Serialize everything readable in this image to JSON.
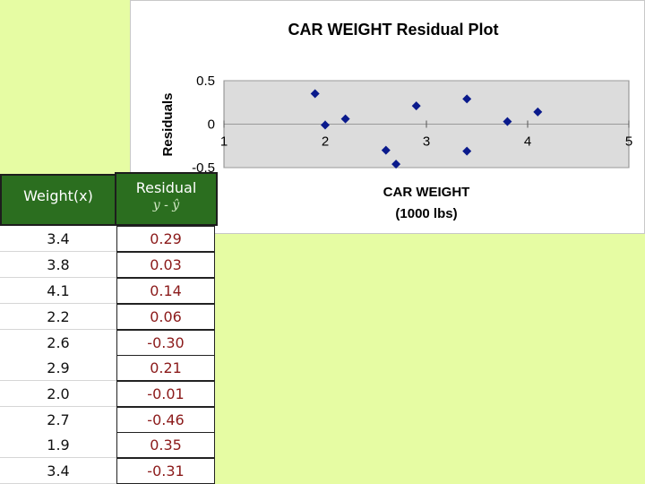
{
  "table": {
    "header_weight": "Weight(x)",
    "header_residual": "Residual",
    "header_residual_sub": "y - ŷ",
    "rows": [
      {
        "weight": "3.4",
        "residual": "0.29"
      },
      {
        "weight": "3.8",
        "residual": "0.03"
      },
      {
        "weight": "4.1",
        "residual": "0.14"
      },
      {
        "weight": "2.2",
        "residual": "0.06"
      },
      {
        "weight": "2.6",
        "residual": "-0.30"
      },
      {
        "weight": "2.9",
        "residual": "0.21"
      },
      {
        "weight": "2.0",
        "residual": "-0.01"
      },
      {
        "weight": "2.7",
        "residual": "-0.46"
      },
      {
        "weight": "1.9",
        "residual": "0.35"
      },
      {
        "weight": "3.4",
        "residual": "-0.31"
      }
    ]
  },
  "chart_data": {
    "type": "scatter",
    "title": "CAR WEIGHT  Residual Plot",
    "xlabel_line1": "CAR WEIGHT",
    "xlabel_line2": "(1000 lbs)",
    "ylabel": "Residuals",
    "xlim": [
      1,
      5
    ],
    "ylim": [
      -0.5,
      0.5
    ],
    "xticks": [
      "1",
      "2",
      "3",
      "4",
      "5"
    ],
    "yticks": [
      "0.5",
      "0",
      "-0.5"
    ],
    "grid": true,
    "plot_background": "#dcdcdc",
    "marker_color": "#0a1a8c",
    "points": [
      {
        "x": 3.4,
        "y": 0.29
      },
      {
        "x": 3.8,
        "y": 0.03
      },
      {
        "x": 4.1,
        "y": 0.14
      },
      {
        "x": 2.2,
        "y": 0.06
      },
      {
        "x": 2.6,
        "y": -0.3
      },
      {
        "x": 2.9,
        "y": 0.21
      },
      {
        "x": 2.0,
        "y": -0.01
      },
      {
        "x": 2.7,
        "y": -0.46
      },
      {
        "x": 1.9,
        "y": 0.35
      },
      {
        "x": 3.4,
        "y": -0.31
      }
    ]
  }
}
